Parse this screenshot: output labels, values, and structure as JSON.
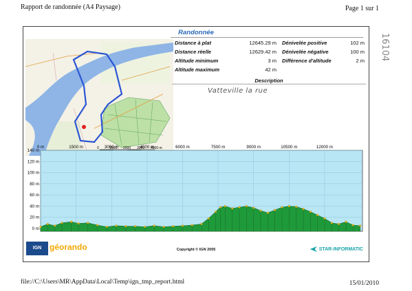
{
  "header": {
    "title": "Rapport de randonnée (A4 Paysage)",
    "page": "Page 1 sur 1"
  },
  "side_note": "16104",
  "report": {
    "title": "Randonnée",
    "stats": [
      {
        "label": "Distance à plat",
        "value": "12645.29 m"
      },
      {
        "label": "Dénivelée positive",
        "value": "102 m"
      },
      {
        "label": "Distance réelle",
        "value": "12629.42 m"
      },
      {
        "label": "Dénivelée négative",
        "value": "100 m"
      },
      {
        "label": "Altitude minimum",
        "value": "3 m"
      },
      {
        "label": "Différence d'altitude",
        "value": "2 m"
      },
      {
        "label": "Altitude maximum",
        "value": "42 m"
      }
    ],
    "description_title": "Description",
    "description_text": "Vatteville la rue",
    "map_scale": [
      "0",
      "1000",
      "2000",
      "3000",
      "4000 m"
    ]
  },
  "chart_data": {
    "type": "area",
    "xlabel": "",
    "ylabel": "",
    "xlim": [
      0,
      13600
    ],
    "ylim": [
      -5,
      140
    ],
    "x_ticks": [
      "0 m",
      "1500 m",
      "3000 m",
      "4500 m",
      "6000 m",
      "7500 m",
      "9000 m",
      "10500 m",
      "12000 m"
    ],
    "x_tick_values": [
      0,
      1500,
      3000,
      4500,
      6000,
      7500,
      9000,
      10500,
      12000
    ],
    "y_ticks": [
      "140 m",
      "120 m",
      "100 m",
      "80 m",
      "60 m",
      "40 m",
      "20 m",
      "0 m"
    ],
    "y_tick_values": [
      140,
      120,
      100,
      80,
      60,
      40,
      20,
      0
    ],
    "series": [
      {
        "x": [
          0,
          300,
          600,
          900,
          1300,
          1600,
          2000,
          2400,
          2800,
          3200,
          3600,
          4000,
          4400,
          4800,
          5200,
          5600,
          6000,
          6400,
          6800,
          7100,
          7400,
          7600,
          7800,
          8100,
          8400,
          8700,
          9000,
          9300,
          9600,
          9900,
          10200,
          10500,
          10800,
          11100,
          11400,
          11700,
          12000,
          12300,
          12600,
          12900,
          13200,
          13500
        ],
        "values": [
          3,
          8,
          5,
          10,
          12,
          9,
          10,
          6,
          3,
          5,
          4,
          4,
          3,
          5,
          3,
          4,
          5,
          6,
          8,
          18,
          30,
          38,
          40,
          36,
          38,
          40,
          37,
          32,
          28,
          33,
          38,
          40,
          39,
          35,
          30,
          24,
          18,
          10,
          8,
          12,
          6,
          5
        ]
      }
    ]
  },
  "footer": {
    "path": "file://C:\\Users\\MR\\AppData\\Local\\Temp\\ign_tmp_report.html",
    "date": "15/01/2010"
  },
  "logos": {
    "ign": "IGN",
    "geo": "géorando",
    "copyright": "Copyright © IGN 2005",
    "star": "STAR-INFORMATIC"
  }
}
